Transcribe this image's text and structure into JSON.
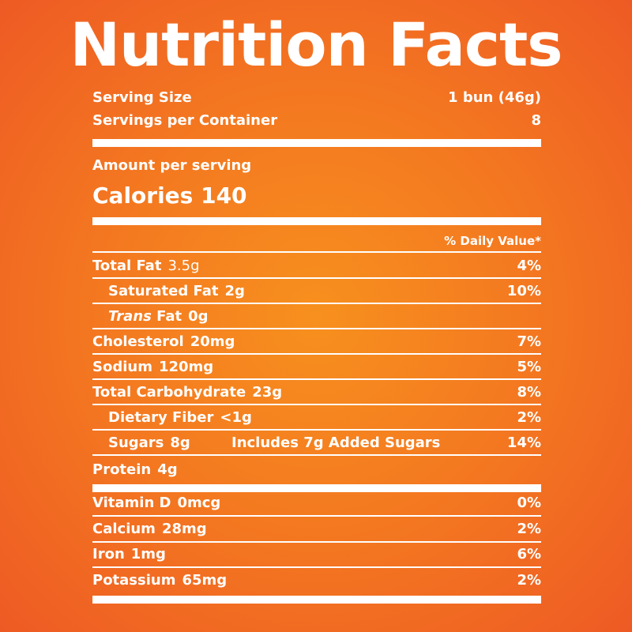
{
  "title": "Nutrition Facts",
  "serving": {
    "size_label": "Serving Size",
    "size_value": "1 bun (46g)",
    "per_container_label": "Servings per Container",
    "per_container_value": "8"
  },
  "amount_per_serving": "Amount per serving",
  "calories": {
    "label": "Calories",
    "value": "140"
  },
  "daily_value_header": "% Daily Value*",
  "nutrients": [
    {
      "name": "Total Fat",
      "amount": "3.5g",
      "dv": "4%"
    },
    {
      "name": "Saturated Fat",
      "amount": "2g",
      "dv": "10%"
    },
    {
      "name_italic": "Trans",
      "name": "Fat",
      "amount": "0g",
      "dv": ""
    },
    {
      "name": "Cholesterol",
      "amount": "20mg",
      "dv": "7%"
    },
    {
      "name": "Sodium",
      "amount": "120mg",
      "dv": "5%"
    },
    {
      "name": "Total Carbohydrate",
      "amount": "23g",
      "dv": "8%"
    },
    {
      "name": "Dietary Fiber",
      "amount": "<1g",
      "dv": "2%"
    },
    {
      "name": "Sugars",
      "amount": "8g",
      "added": "Includes 7g Added Sugars",
      "dv": "14%"
    },
    {
      "name": "Protein",
      "amount": "4g",
      "dv": ""
    }
  ],
  "vitamins": [
    {
      "name": "Vitamin D",
      "amount": "0mcg",
      "dv": "0%"
    },
    {
      "name": "Calcium",
      "amount": "28mg",
      "dv": "2%"
    },
    {
      "name": "Iron",
      "amount": "1mg",
      "dv": "6%"
    },
    {
      "name": "Potassium",
      "amount": "65mg",
      "dv": "2%"
    }
  ],
  "colors": {
    "background_center": "#f7901e",
    "background_edge": "#ee5a24",
    "text": "#ffffff"
  }
}
